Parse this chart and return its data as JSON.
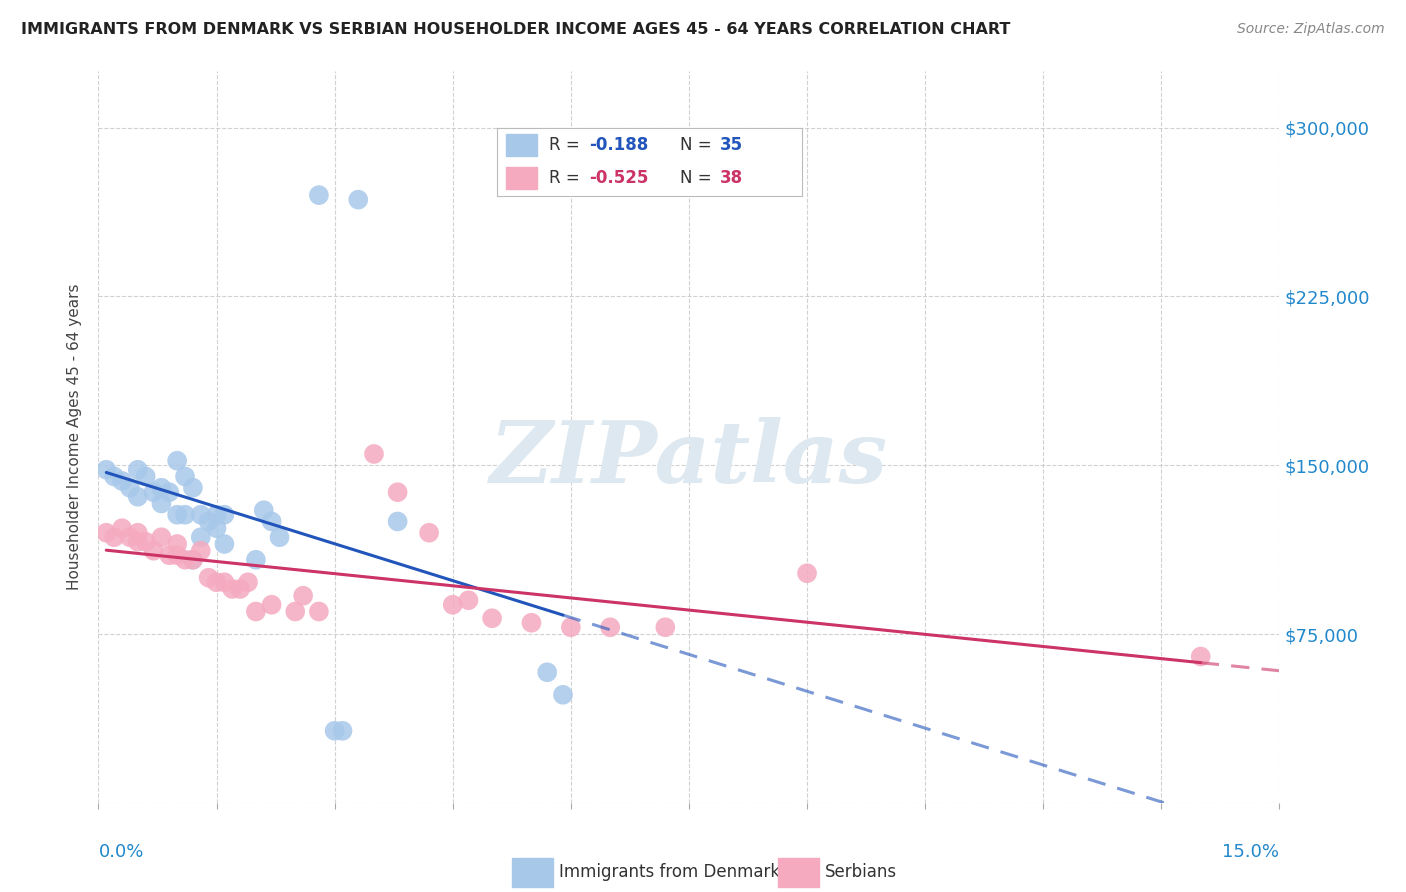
{
  "title": "IMMIGRANTS FROM DENMARK VS SERBIAN HOUSEHOLDER INCOME AGES 45 - 64 YEARS CORRELATION CHART",
  "source": "Source: ZipAtlas.com",
  "ylabel": "Householder Income Ages 45 - 64 years",
  "xlim": [
    0.0,
    0.15
  ],
  "ylim": [
    0,
    325000
  ],
  "yticks": [
    0,
    75000,
    150000,
    225000,
    300000
  ],
  "denmark_color": "#a8c8ea",
  "serbia_color": "#f5aac0",
  "denmark_line_color": "#2255bb",
  "serbia_line_color": "#cc3366",
  "denmark_scatter": [
    [
      0.001,
      148000
    ],
    [
      0.002,
      145000
    ],
    [
      0.003,
      143000
    ],
    [
      0.004,
      140000
    ],
    [
      0.005,
      148000
    ],
    [
      0.005,
      136000
    ],
    [
      0.006,
      145000
    ],
    [
      0.007,
      138000
    ],
    [
      0.008,
      140000
    ],
    [
      0.008,
      133000
    ],
    [
      0.009,
      138000
    ],
    [
      0.01,
      152000
    ],
    [
      0.01,
      128000
    ],
    [
      0.011,
      145000
    ],
    [
      0.011,
      128000
    ],
    [
      0.012,
      140000
    ],
    [
      0.012,
      108000
    ],
    [
      0.013,
      128000
    ],
    [
      0.013,
      118000
    ],
    [
      0.014,
      125000
    ],
    [
      0.015,
      128000
    ],
    [
      0.015,
      122000
    ],
    [
      0.016,
      128000
    ],
    [
      0.016,
      115000
    ],
    [
      0.02,
      108000
    ],
    [
      0.021,
      130000
    ],
    [
      0.022,
      125000
    ],
    [
      0.023,
      118000
    ],
    [
      0.028,
      270000
    ],
    [
      0.033,
      268000
    ],
    [
      0.038,
      125000
    ],
    [
      0.057,
      58000
    ],
    [
      0.059,
      48000
    ],
    [
      0.03,
      32000
    ],
    [
      0.031,
      32000
    ]
  ],
  "serbia_scatter": [
    [
      0.001,
      120000
    ],
    [
      0.002,
      118000
    ],
    [
      0.003,
      122000
    ],
    [
      0.004,
      118000
    ],
    [
      0.005,
      120000
    ],
    [
      0.005,
      116000
    ],
    [
      0.006,
      116000
    ],
    [
      0.007,
      112000
    ],
    [
      0.008,
      118000
    ],
    [
      0.009,
      110000
    ],
    [
      0.01,
      115000
    ],
    [
      0.01,
      110000
    ],
    [
      0.011,
      108000
    ],
    [
      0.012,
      108000
    ],
    [
      0.013,
      112000
    ],
    [
      0.014,
      100000
    ],
    [
      0.015,
      98000
    ],
    [
      0.016,
      98000
    ],
    [
      0.017,
      95000
    ],
    [
      0.018,
      95000
    ],
    [
      0.019,
      98000
    ],
    [
      0.02,
      85000
    ],
    [
      0.022,
      88000
    ],
    [
      0.025,
      85000
    ],
    [
      0.026,
      92000
    ],
    [
      0.028,
      85000
    ],
    [
      0.035,
      155000
    ],
    [
      0.038,
      138000
    ],
    [
      0.042,
      120000
    ],
    [
      0.045,
      88000
    ],
    [
      0.047,
      90000
    ],
    [
      0.05,
      82000
    ],
    [
      0.055,
      80000
    ],
    [
      0.06,
      78000
    ],
    [
      0.065,
      78000
    ],
    [
      0.072,
      78000
    ],
    [
      0.09,
      102000
    ],
    [
      0.14,
      65000
    ]
  ],
  "watermark_text": "ZIPatlas",
  "background_color": "#ffffff",
  "grid_color": "#cccccc"
}
